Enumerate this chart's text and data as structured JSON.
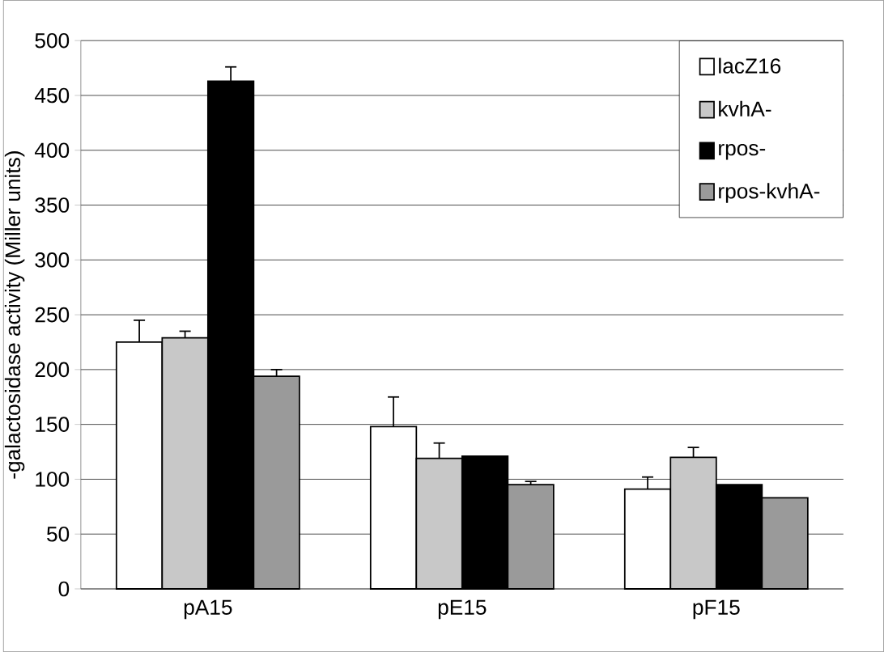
{
  "chart_data": {
    "type": "bar",
    "ylabel": "-galactosidase activity (Miller units)",
    "categories": [
      "pA15",
      "pE15",
      "pF15"
    ],
    "series": [
      {
        "name": "lacZ16",
        "color": "#ffffff",
        "values": [
          225,
          148,
          91
        ],
        "errors": [
          20,
          27,
          11
        ]
      },
      {
        "name": "kvhA-",
        "color": "#c8c8c8",
        "values": [
          229,
          119,
          120
        ],
        "errors": [
          6,
          14,
          9
        ]
      },
      {
        "name": "rpos-",
        "color": "#000000",
        "values": [
          463,
          121,
          95
        ],
        "errors": [
          13,
          null,
          null
        ]
      },
      {
        "name": "rpos-kvhA-",
        "color": "#9a9a9a",
        "values": [
          194,
          95,
          83
        ],
        "errors": [
          6,
          3,
          null
        ]
      }
    ],
    "ylim": [
      0,
      500
    ],
    "yticks": [
      0,
      50,
      100,
      150,
      200,
      250,
      300,
      350,
      400,
      450,
      500
    ],
    "grid": "y",
    "legend": "top right"
  }
}
